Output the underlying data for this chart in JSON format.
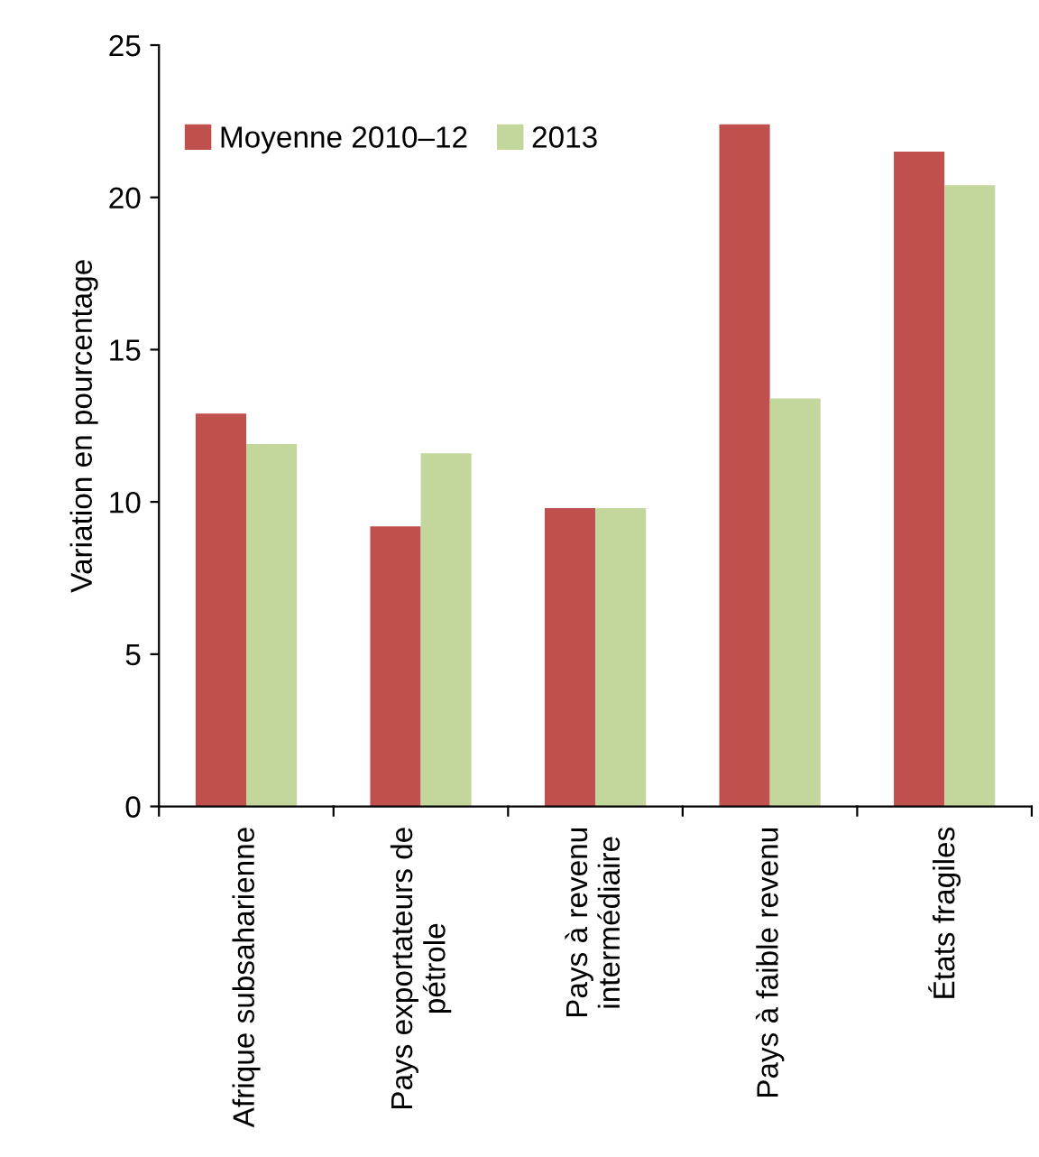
{
  "chart_data": {
    "type": "bar",
    "ylabel": "Variation en pourcentage",
    "categories": [
      "Afrique subsaharienne",
      "Pays exportateurs de\npétrole",
      "Pays à revenu\nintermédiaire",
      "Pays à faible revenu",
      "États fragiles"
    ],
    "series": [
      {
        "name": "Moyenne 2010–12",
        "color": "#c0504d",
        "values": [
          12.9,
          9.2,
          9.8,
          22.4,
          21.5
        ]
      },
      {
        "name": "2013",
        "color": "#c3d69b",
        "values": [
          11.9,
          11.6,
          9.8,
          13.4,
          20.4
        ]
      }
    ],
    "ylim": [
      0,
      25
    ],
    "yticks": [
      0,
      5,
      10,
      15,
      20,
      25
    ],
    "grid": false,
    "legend": "top left"
  }
}
